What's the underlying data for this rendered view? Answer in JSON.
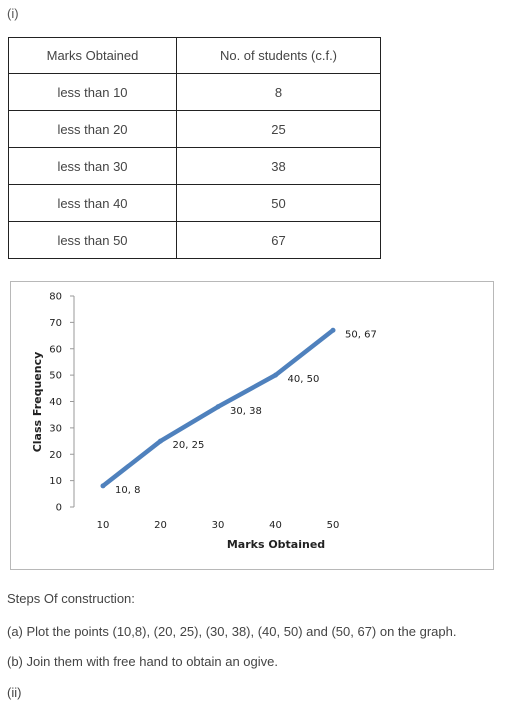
{
  "section_label_i": "(i)",
  "table": {
    "headers": [
      "Marks Obtained",
      "No. of students (c.f.)"
    ],
    "rows": [
      [
        "less than 10",
        "8"
      ],
      [
        "less than 20",
        "25"
      ],
      [
        "less than 30",
        "38"
      ],
      [
        "less than 40",
        "50"
      ],
      [
        "less than 50",
        "67"
      ]
    ]
  },
  "chart_data": {
    "type": "line",
    "x": [
      10,
      20,
      30,
      40,
      50
    ],
    "y": [
      8,
      25,
      38,
      50,
      67
    ],
    "point_labels": [
      "10, 8",
      "20, 25",
      "30, 38",
      "40, 50",
      "50, 67"
    ],
    "xlabel": "Marks Obtained",
    "ylabel": "Class Frequency",
    "x_ticks": [
      "10",
      "20",
      "30",
      "40",
      "50"
    ],
    "y_ticks": [
      "0",
      "10",
      "20",
      "30",
      "40",
      "50",
      "60",
      "70",
      "80"
    ],
    "ylim": [
      0,
      80
    ],
    "grid": false,
    "line_color": "#4f81bd"
  },
  "steps_heading": "Steps Of construction:",
  "step_a": "(a) Plot the points (10,8), (20, 25), (30, 38), (40, 50) and (50, 67) on the graph.",
  "step_b": "(b) Join them with free hand to obtain an ogive.",
  "section_label_ii": "(ii)"
}
